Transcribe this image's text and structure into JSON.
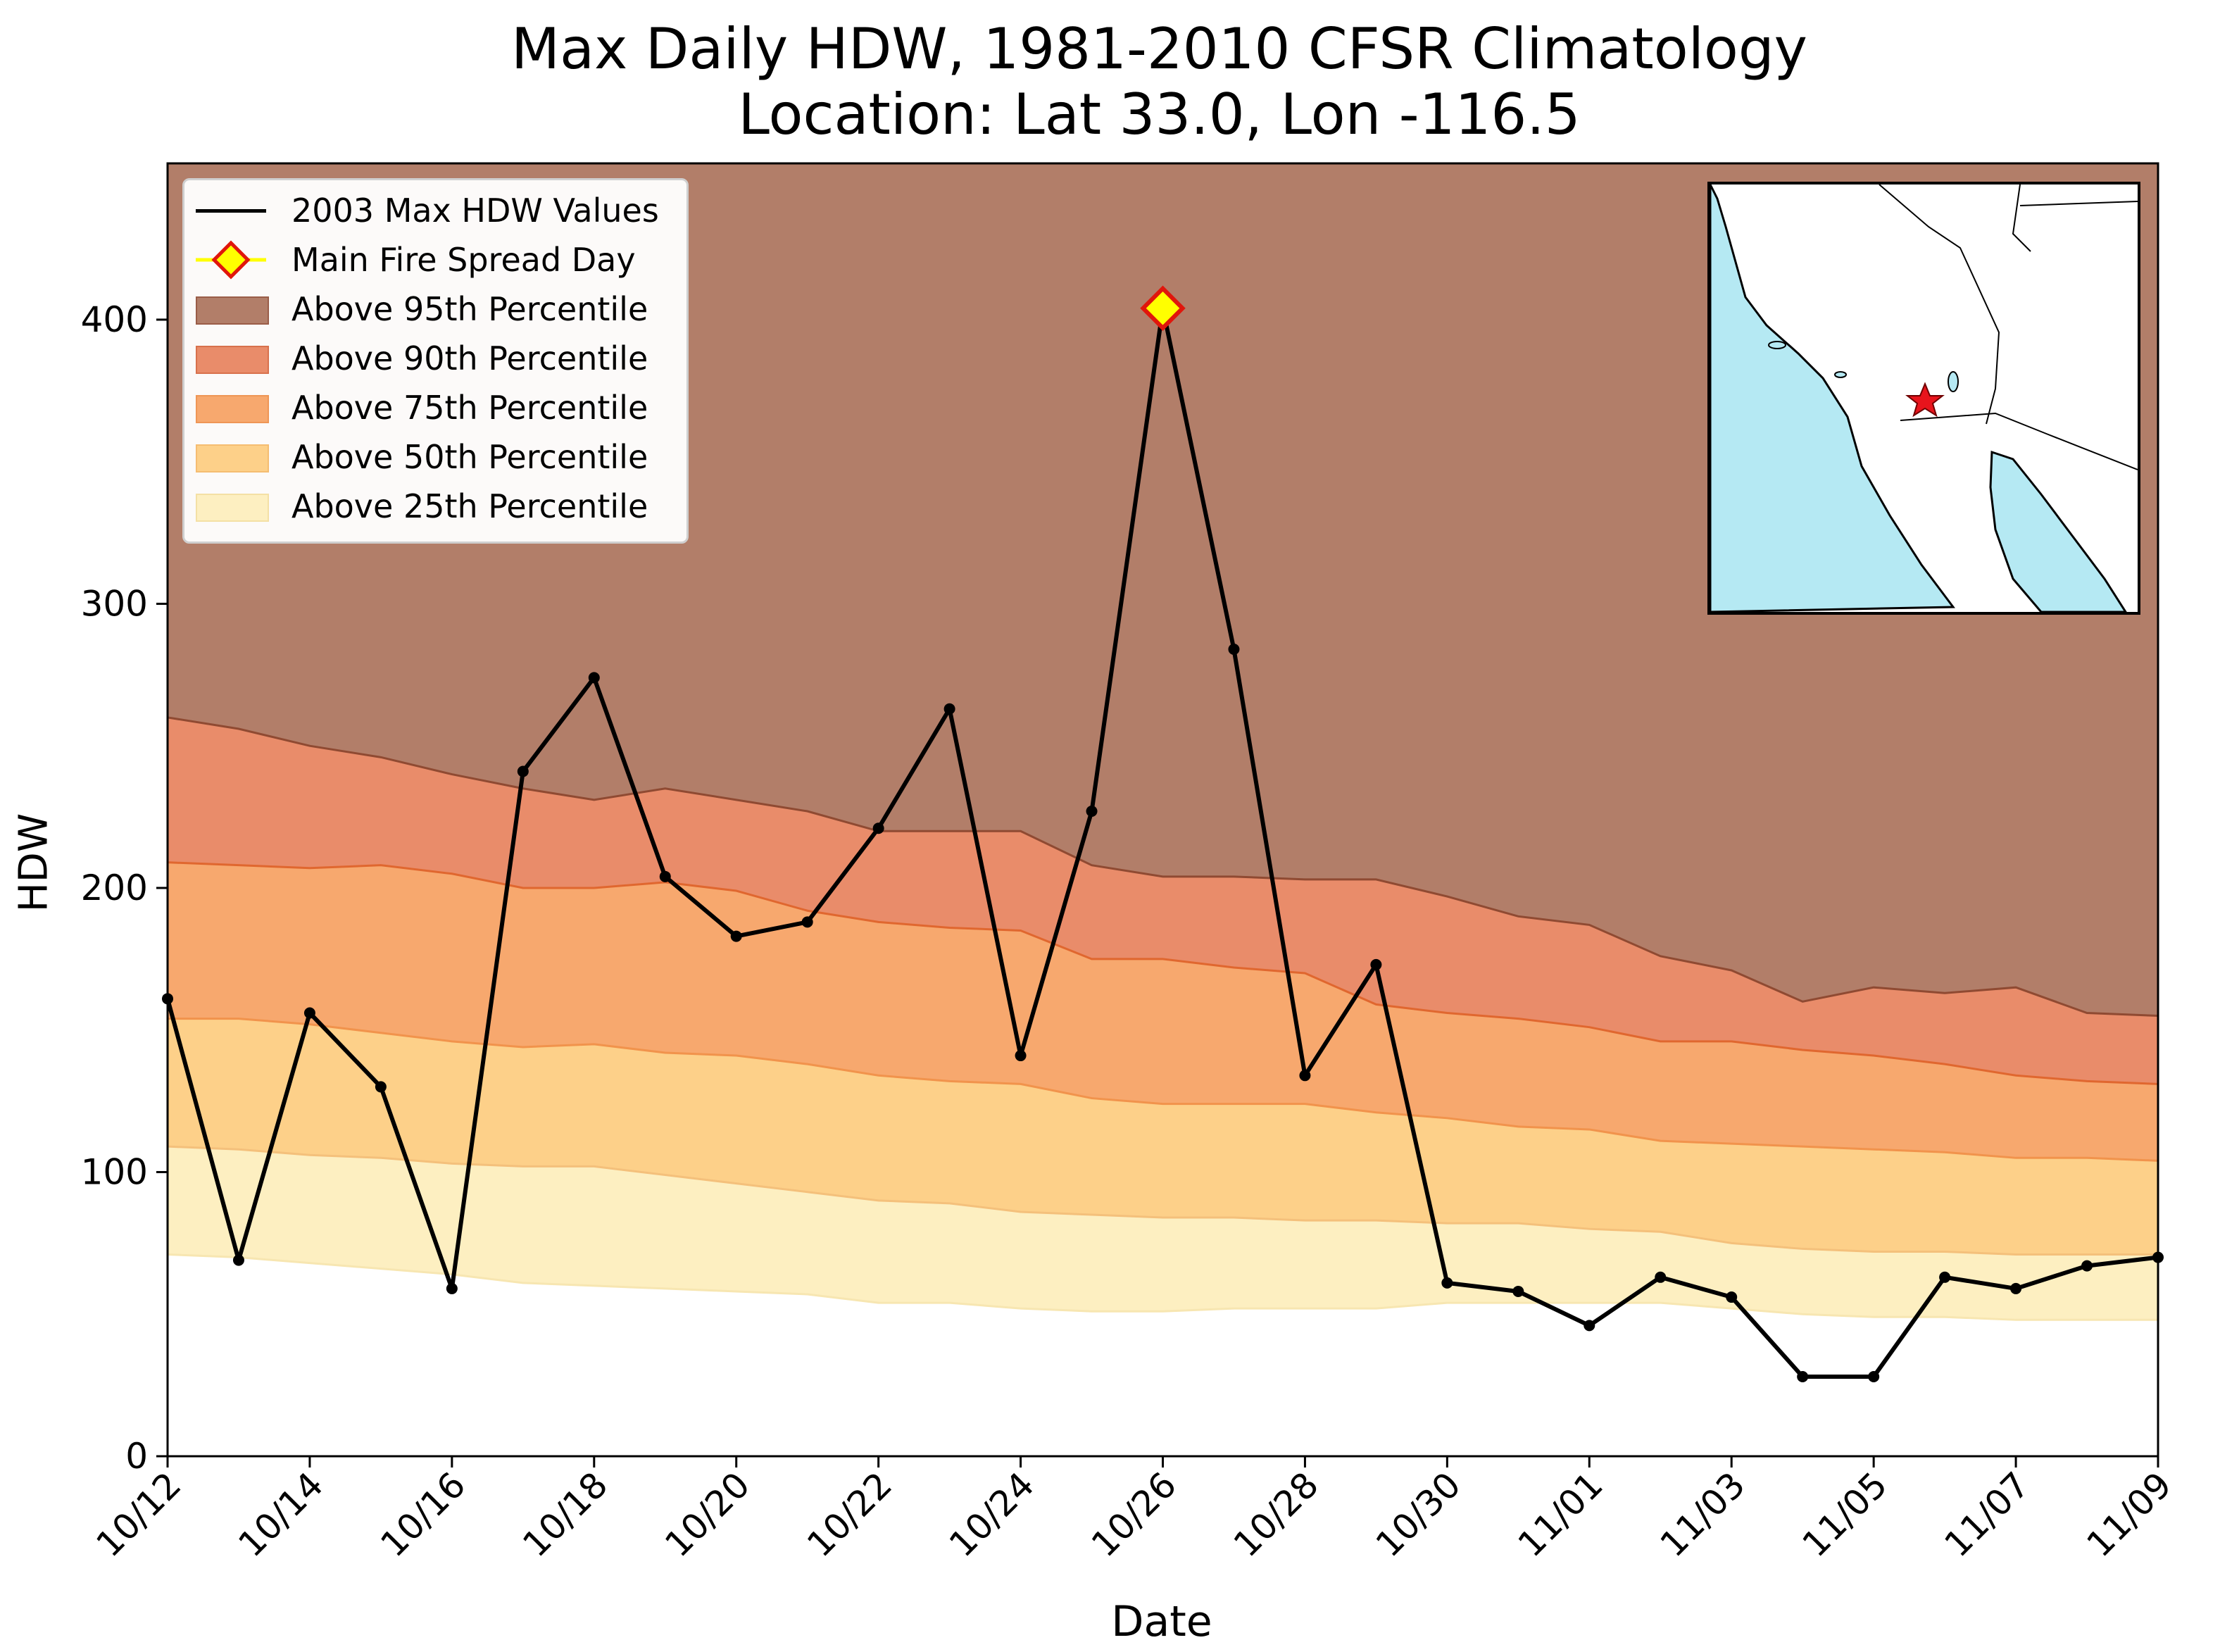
{
  "chart_data": {
    "type": "area",
    "title": "Max Daily HDW, 1981-2010 CFSR Climatology",
    "subtitle": "Location: Lat 33.0, Lon -116.5",
    "xlabel": "Date",
    "ylabel": "HDW",
    "ylim": [
      0,
      455
    ],
    "yticks": [
      0,
      100,
      200,
      300,
      400
    ],
    "x": [
      "10/12",
      "10/13",
      "10/14",
      "10/15",
      "10/16",
      "10/17",
      "10/18",
      "10/19",
      "10/20",
      "10/21",
      "10/22",
      "10/23",
      "10/24",
      "10/25",
      "10/26",
      "10/27",
      "10/28",
      "10/29",
      "10/30",
      "10/31",
      "11/01",
      "11/02",
      "11/03",
      "11/04",
      "11/05",
      "11/06",
      "11/07",
      "11/08",
      "11/09"
    ],
    "xtick_labels": [
      "10/12",
      "10/14",
      "10/16",
      "10/18",
      "10/20",
      "10/22",
      "10/24",
      "10/26",
      "10/28",
      "10/30",
      "11/01",
      "11/03",
      "11/05",
      "11/07",
      "11/09"
    ],
    "grid": false,
    "legend_placement": "top-left",
    "percentile_bands": [
      {
        "name": "Above 95th Percentile",
        "color": "#b27e69",
        "threshold": [
          260,
          256,
          250,
          246,
          240,
          235,
          231,
          235,
          231,
          227,
          220,
          220,
          220,
          208,
          204,
          204,
          203,
          203,
          197,
          190,
          187,
          176,
          171,
          160,
          165,
          163,
          165,
          156,
          155
        ]
      },
      {
        "name": "Above 90th Percentile",
        "color": "#e98c6a",
        "threshold": [
          209,
          208,
          207,
          208,
          205,
          200,
          200,
          202,
          199,
          192,
          188,
          186,
          185,
          175,
          175,
          172,
          170,
          159,
          156,
          154,
          151,
          146,
          146,
          143,
          141,
          138,
          134,
          132,
          131
        ]
      },
      {
        "name": "Above 75th Percentile",
        "color": "#f7a86e",
        "threshold": [
          154,
          154,
          152,
          149,
          146,
          144,
          145,
          142,
          141,
          138,
          134,
          132,
          131,
          126,
          124,
          124,
          124,
          121,
          119,
          116,
          115,
          111,
          110,
          109,
          108,
          107,
          105,
          105,
          104
        ]
      },
      {
        "name": "Above 50th Percentile",
        "color": "#fdd089",
        "threshold": [
          109,
          108,
          106,
          105,
          103,
          102,
          102,
          99,
          96,
          93,
          90,
          89,
          86,
          85,
          84,
          84,
          83,
          83,
          82,
          82,
          80,
          79,
          75,
          73,
          72,
          72,
          71,
          71,
          71
        ]
      },
      {
        "name": "Above 25th Percentile",
        "color": "#fdefc1",
        "threshold": [
          71,
          70,
          68,
          66,
          64,
          61,
          60,
          59,
          58,
          57,
          54,
          54,
          52,
          51,
          51,
          52,
          52,
          52,
          54,
          54,
          54,
          54,
          52,
          50,
          49,
          49,
          48,
          48,
          48
        ]
      }
    ],
    "series": [
      {
        "name": "2003 Max HDW Values",
        "color": "#000000",
        "values": [
          161,
          69,
          156,
          130,
          59,
          241,
          274,
          204,
          183,
          188,
          221,
          263,
          141,
          227,
          404,
          284,
          134,
          173,
          61,
          58,
          46,
          63,
          56,
          28,
          28,
          63,
          59,
          67,
          70
        ]
      }
    ],
    "markers": [
      {
        "name": "Main Fire Spread Day",
        "x": "10/26",
        "y": 404,
        "fill": "#ffff00",
        "edge": "#e0160c"
      }
    ]
  }
}
